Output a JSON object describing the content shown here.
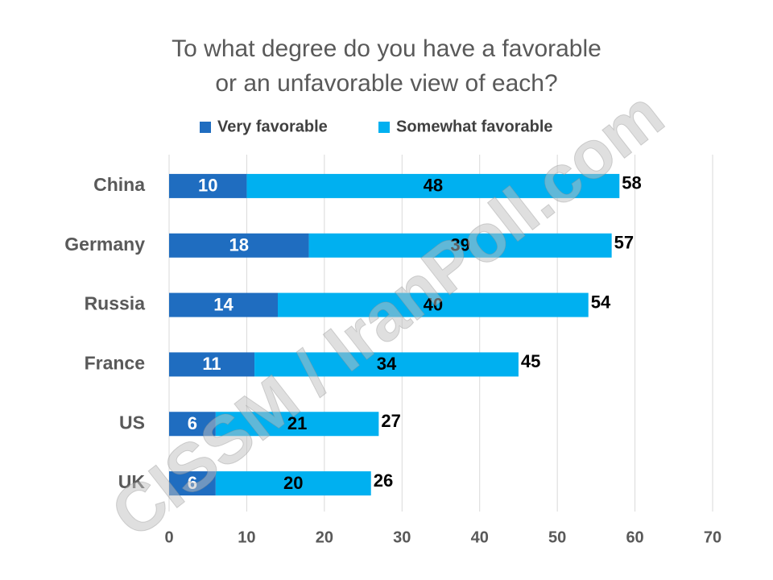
{
  "chart_data": {
    "type": "stacked-bar-horizontal",
    "title": [
      "To what degree do you have a favorable",
      "or an unfavorable view of each?"
    ],
    "categories": [
      "China",
      "Germany",
      "Russia",
      "France",
      "US",
      "UK"
    ],
    "series": [
      {
        "name": "Very favorable",
        "color": "#1f6dc0",
        "values": [
          10,
          18,
          14,
          11,
          6,
          6
        ]
      },
      {
        "name": "Somewhat favorable",
        "color": "#00b0f0",
        "values": [
          48,
          39,
          40,
          34,
          21,
          20
        ]
      }
    ],
    "totals": [
      58,
      57,
      54,
      45,
      27,
      26
    ],
    "xlim": [
      0,
      70
    ],
    "xticks": [
      0,
      10,
      20,
      30,
      40,
      50,
      60,
      70
    ],
    "grid": true,
    "legend": "top"
  },
  "watermark": "CISSM / IranPoll.com"
}
